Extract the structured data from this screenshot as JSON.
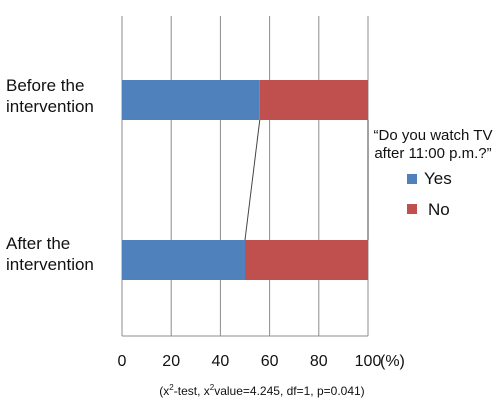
{
  "chart_data": {
    "type": "bar",
    "stacked": true,
    "orientation": "horizontal",
    "categories": [
      "Before the intervention",
      "After the intervention"
    ],
    "category_lines": [
      [
        "Before the",
        "intervention"
      ],
      [
        "After the",
        "intervention"
      ]
    ],
    "series": [
      {
        "name": "Yes",
        "values": [
          56,
          50
        ],
        "color": "#4f81bd"
      },
      {
        "name": "No",
        "values": [
          44,
          50
        ],
        "color": "#c0504d"
      }
    ],
    "xlim": [
      0,
      100
    ],
    "xticks": [
      0,
      20,
      40,
      60,
      80,
      100
    ],
    "xunit": "(%)",
    "grid": true,
    "legend_position": "right",
    "legend_title": "“Do you watch TV after 11:00 p.m.?”",
    "legend_title_lines": [
      "“Do you watch TV",
      "after 11:00 p.m.?”"
    ],
    "series_lines": true,
    "footnote": {
      "open": "(x",
      "sup1": "2",
      "mid": "-test,  x",
      "sup2": "2",
      "rest": "value=4.245,  df=1,  p=0.041)"
    }
  }
}
